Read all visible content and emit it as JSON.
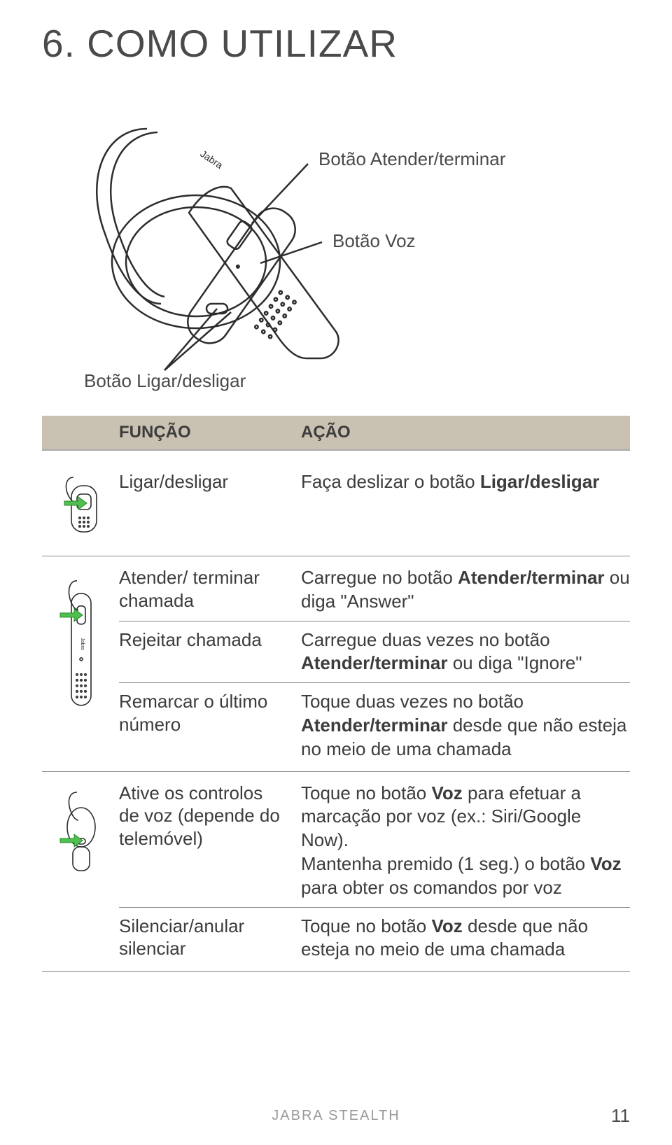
{
  "page": {
    "title": "6. COMO UTILIZAR",
    "footer_brand": "JABRA STEALTH",
    "page_number": "11"
  },
  "colors": {
    "header_bg": "#c9c2b2",
    "text": "#3c3c3c",
    "rule": "#888888",
    "arrow_green": "#4fbf4f",
    "outline": "#2d2d2d"
  },
  "diagram": {
    "callouts": {
      "answer_end": "Botão Atender/terminar",
      "voice": "Botão Voz",
      "power": "Botão Ligar/desligar"
    }
  },
  "table": {
    "headers": {
      "function": "FUNÇÃO",
      "action": "AÇÃO"
    },
    "rows": [
      {
        "function": "Ligar/desligar",
        "action_html": "Faça deslizar o botão <b>Ligar/desligar</b>",
        "icon": "power"
      },
      {
        "icon": "side",
        "subrows": [
          {
            "function": "Atender/\nterminar chamada",
            "action_html": "Carregue no botão <b>Atender/terminar</b> ou diga \"Answer\""
          },
          {
            "function": "Rejeitar chamada",
            "action_html": "Carregue duas vezes no botão <b>Atender/terminar</b> ou diga \"Ignore\""
          },
          {
            "function": "Remarcar o último número",
            "action_html": "Toque duas vezes no botão <b>Atender/terminar</b> desde que não esteja no meio de uma chamada"
          }
        ]
      },
      {
        "icon": "voice",
        "subrows": [
          {
            "function": "Ative os controlos de voz (depende do telemóvel)",
            "action_html": "Toque no botão <b>Voz</b> para efetuar a marcação por voz (ex.: Siri/Google Now).<br>Mantenha premido (1 seg.) o botão <b>Voz</b> para obter os comandos por voz"
          },
          {
            "function": "Silenciar/anular silenciar",
            "action_html": "Toque no botão <b>Voz</b> desde que não esteja no meio de uma chamada"
          }
        ]
      }
    ]
  }
}
